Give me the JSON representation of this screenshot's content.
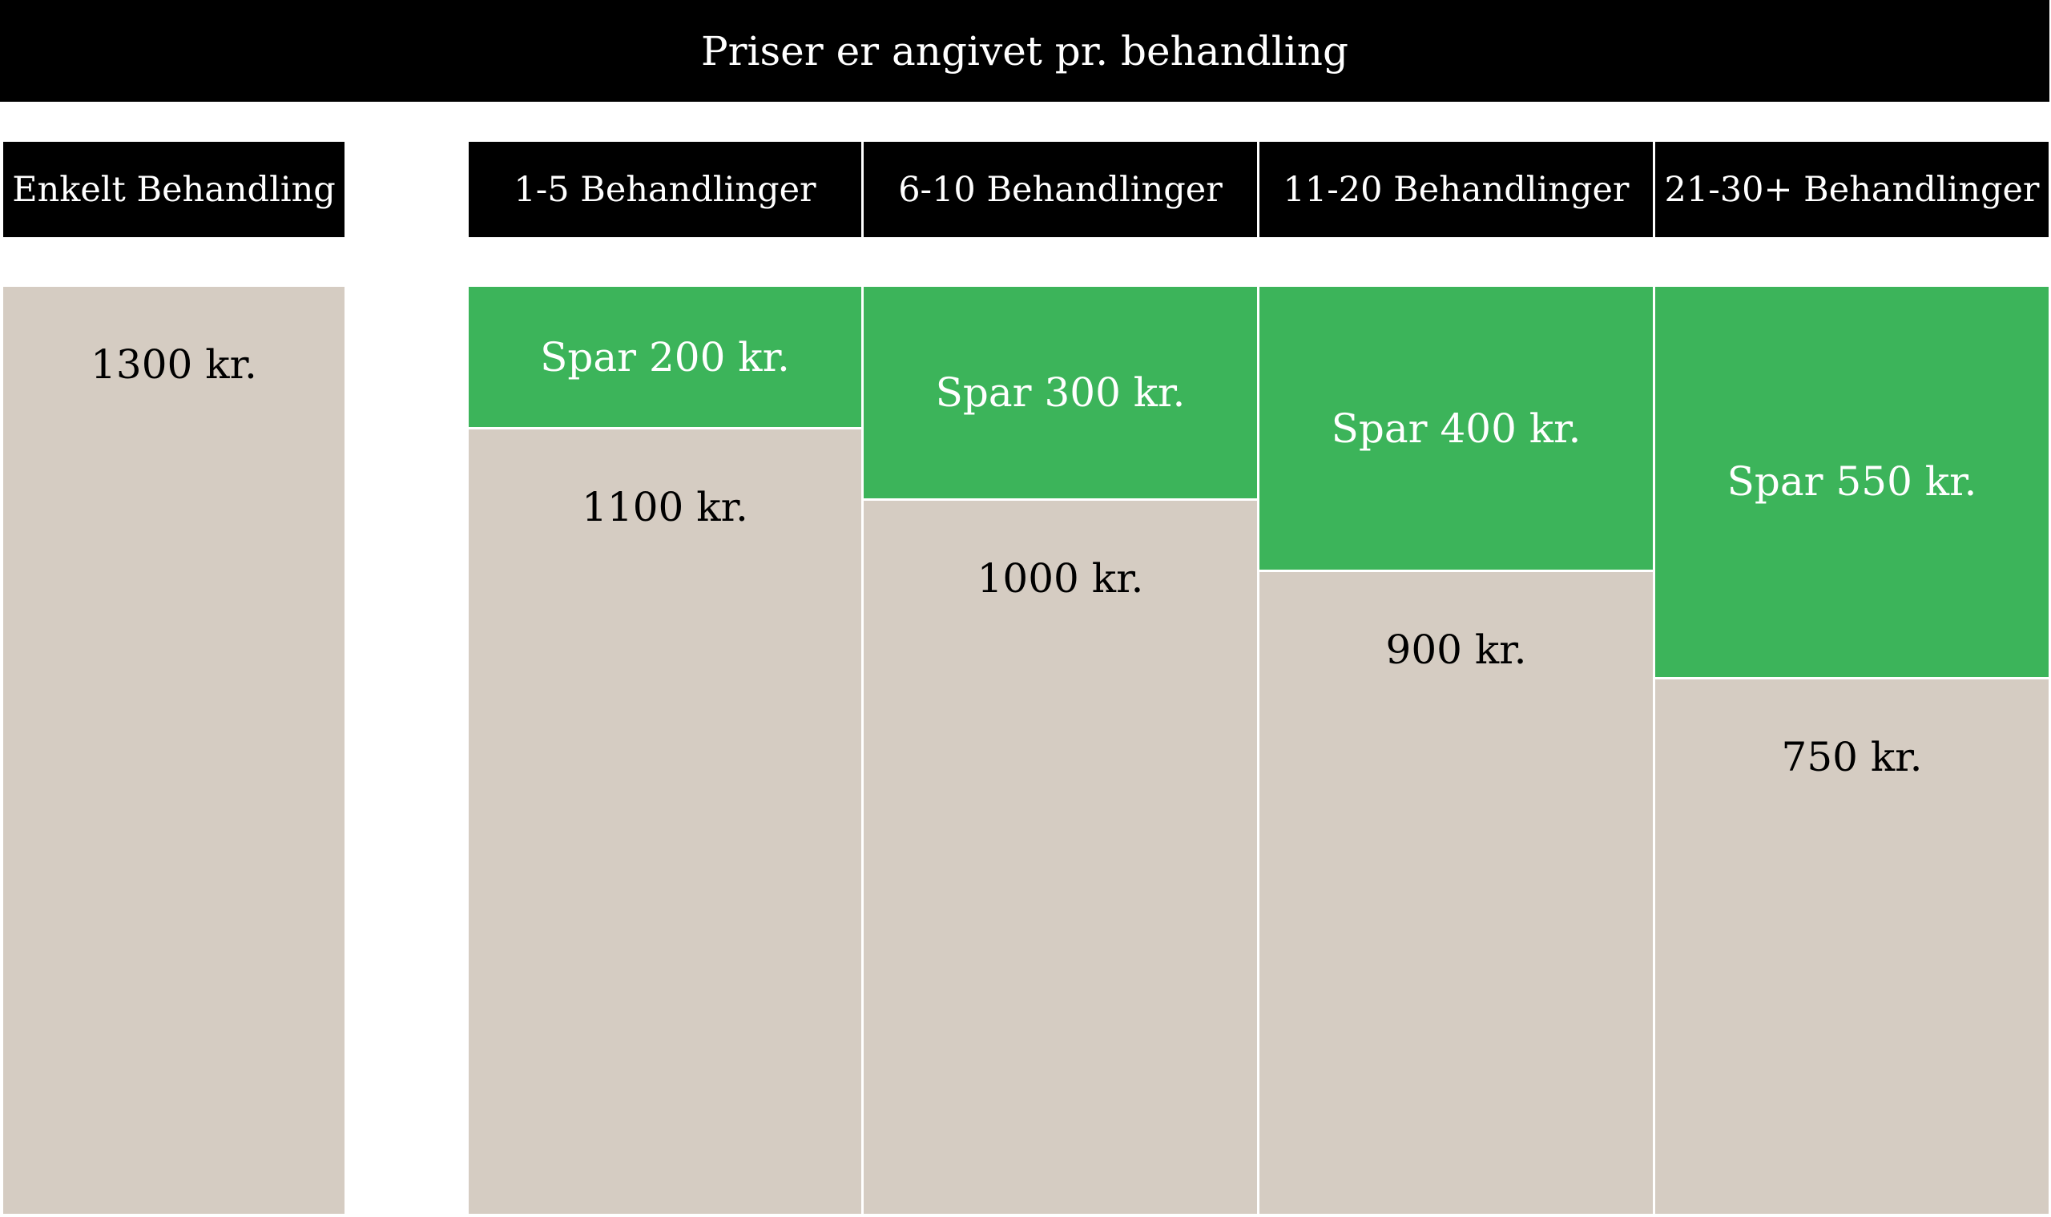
{
  "title": "Priser er angivet pr. behandling",
  "chart_data": {
    "type": "bar",
    "stacked": true,
    "categories": [
      "Enkelt Behandling",
      "1-5 Behandlinger",
      "6-10 Behandlinger",
      "11-20 Behandlinger",
      "21-30+ Behandlinger"
    ],
    "series": [
      {
        "values": [
          1300,
          1100,
          1000,
          900,
          750
        ],
        "labels": [
          "1300 kr.",
          "1100 kr.",
          "1000 kr.",
          "900 kr.",
          "750 kr."
        ],
        "color": "#d5ccc2"
      },
      {
        "values": [
          0,
          200,
          300,
          400,
          550
        ],
        "labels": [
          "",
          "Spar 200 kr.",
          "Spar 300 kr.",
          "Spar 400 kr.",
          "Spar 550 kr."
        ],
        "color": "#3cb45a"
      }
    ],
    "ylim": [
      0,
      1300
    ]
  }
}
